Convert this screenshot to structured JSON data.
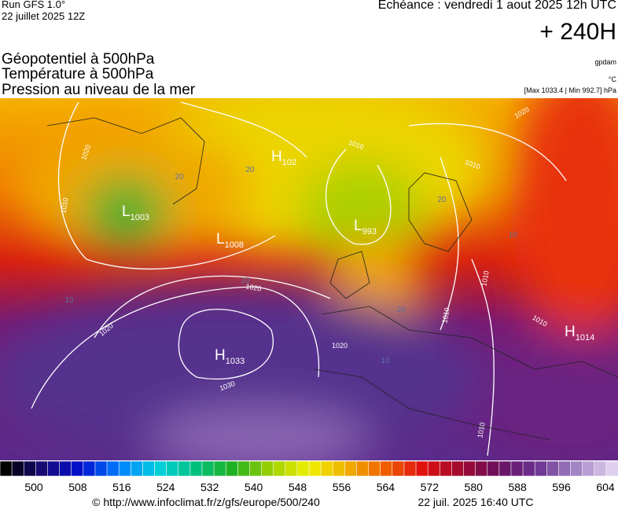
{
  "header": {
    "run": "Run GFS 1.0°",
    "date": "22 juillet 2025 12Z",
    "echeance": "Echéance : vendredi 1 aout 2025 12h UTC",
    "lead": "+ 240H",
    "titles": [
      "Géopotentiel à 500hPa",
      "Température à 500hPa",
      "Pression au niveau de la mer"
    ],
    "units": [
      "gpdam",
      "°C",
      "[Max 1033.4 | Min 992.7] hPa"
    ]
  },
  "map": {
    "centers": [
      {
        "letter": "L",
        "value": "1003"
      },
      {
        "letter": "H",
        "value": "102"
      },
      {
        "letter": "L",
        "value": "1008"
      },
      {
        "letter": "L",
        "value": "993"
      },
      {
        "letter": "H",
        "value": "1033"
      },
      {
        "letter": "H",
        "value": "1014"
      }
    ],
    "isobar_labels": [
      "1020",
      "1010",
      "1010",
      "1010",
      "1020",
      "1020",
      "1020",
      "1030",
      "1010",
      "1010",
      "1010",
      "1010",
      "1020"
    ],
    "temperature_labels": [
      "20",
      "20",
      "10",
      "10",
      "10",
      "20",
      "10",
      "20"
    ]
  },
  "colorbar": {
    "ticks": [
      500,
      508,
      516,
      524,
      532,
      540,
      548,
      556,
      564,
      572,
      580,
      588,
      596,
      604
    ]
  },
  "footer": {
    "url": "© http://www.infoclimat.fr/z/gfs/europe/500/240",
    "timestamp": "22 juil. 2025 16:40 UTC"
  }
}
